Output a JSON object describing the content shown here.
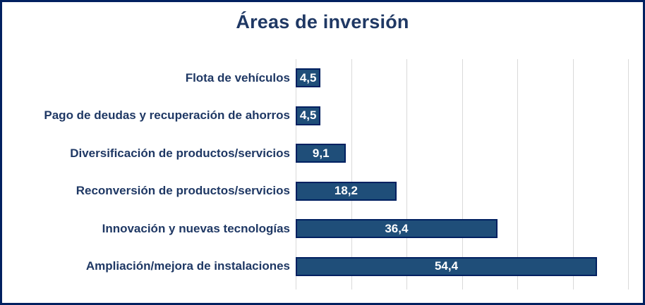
{
  "chart_data": {
    "type": "bar",
    "orientation": "horizontal",
    "title": "Áreas de inversión",
    "categories": [
      "Flota de vehículos",
      "Pago de deudas y recuperación de ahorros",
      "Diversificación de productos/servicios",
      "Reconversión de productos/servicios",
      "Innovación y nuevas tecnologías",
      "Ampliación/mejora de instalaciones"
    ],
    "values": [
      4.5,
      4.5,
      9.1,
      18.2,
      36.4,
      54.4
    ],
    "value_labels": [
      "4,5",
      "4,5",
      "9,1",
      "18,2",
      "36,4",
      "54,4"
    ],
    "xlabel": "",
    "ylabel": "",
    "xlim": [
      0,
      60
    ],
    "gridline_step": 10,
    "grid": true,
    "legend": "none",
    "axis_tick_labels_visible": false,
    "colors": {
      "bar_fill": "#1F4E79",
      "bar_border": "#002060",
      "frame_border": "#002060",
      "title_text": "#1F3864",
      "category_text": "#1F3864",
      "data_label_text": "#FFFFFF",
      "gridline": "#D9D9D9",
      "background": "#FFFFFF"
    }
  }
}
